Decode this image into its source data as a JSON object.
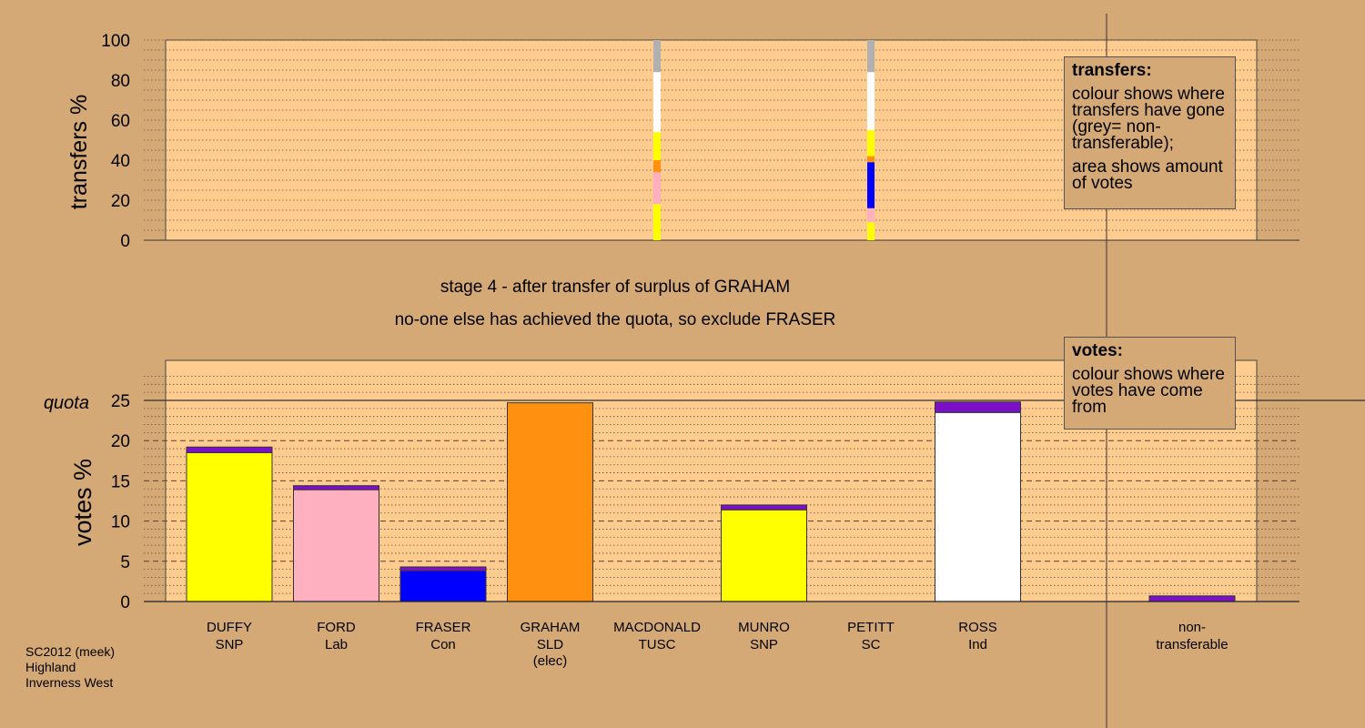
{
  "chart_data": {
    "type": "bar",
    "stage_caption": "stage 4 - after transfer of surplus of GRAHAM",
    "status_caption": "no-one else has achieved the quota, so exclude FRASER",
    "footer": [
      "SC2012 (meek)",
      "Highland",
      "Inverness West"
    ],
    "quota_label": "quota",
    "quota_value": 25,
    "candidates": [
      {
        "name": "DUFFY",
        "party": "SNP",
        "note": "",
        "color": "#ffff00",
        "votes": 18.5,
        "transfer_votes": 0.7
      },
      {
        "name": "FORD",
        "party": "Lab",
        "note": "",
        "color": "#ffb0c0",
        "votes": 13.9,
        "transfer_votes": 0.5
      },
      {
        "name": "FRASER",
        "party": "Con",
        "note": "",
        "color": "#0000ff",
        "votes": 3.8,
        "transfer_votes": 0.5
      },
      {
        "name": "GRAHAM",
        "party": "SLD",
        "note": "(elec)",
        "color": "#ff9010",
        "votes": 24.7,
        "transfer_votes": 0.0
      },
      {
        "name": "MACDONALD",
        "party": "TUSC",
        "note": "",
        "color": "#ff0000",
        "votes": 0,
        "transfer_votes": 0
      },
      {
        "name": "MUNRO",
        "party": "SNP",
        "note": "",
        "color": "#ffff00",
        "votes": 11.4,
        "transfer_votes": 0.6
      },
      {
        "name": "PETITT",
        "party": "SC",
        "note": "",
        "color": "#ff9010",
        "votes": 0,
        "transfer_votes": 0
      },
      {
        "name": "ROSS",
        "party": "Ind",
        "note": "",
        "color": "#ffffff",
        "votes": 23.5,
        "transfer_votes": 1.3
      }
    ],
    "nontransferable": {
      "label_line1": "non-",
      "label_line2": "transferable",
      "votes": 0.7
    },
    "transfer_color": "#7a10c8",
    "transfers": [
      {
        "column": "MACDONALD",
        "segments": [
          {
            "color": "#ffff00",
            "from": 0,
            "to": 18
          },
          {
            "color": "#ffb0c0",
            "from": 18,
            "to": 34
          },
          {
            "color": "#ff9010",
            "from": 34,
            "to": 40
          },
          {
            "color": "#ffff00",
            "from": 40,
            "to": 54
          },
          {
            "color": "#ffffff",
            "from": 54,
            "to": 84
          },
          {
            "color": "#b0b0b0",
            "from": 84,
            "to": 100
          }
        ]
      },
      {
        "column": "PETITT",
        "segments": [
          {
            "color": "#ffff00",
            "from": 0,
            "to": 9
          },
          {
            "color": "#ffb0c0",
            "from": 9,
            "to": 16
          },
          {
            "color": "#0000ff",
            "from": 16,
            "to": 39
          },
          {
            "color": "#ff9010",
            "from": 39,
            "to": 42
          },
          {
            "color": "#ffff00",
            "from": 42,
            "to": 55
          },
          {
            "color": "#ffffff",
            "from": 55,
            "to": 84
          },
          {
            "color": "#b0b0b0",
            "from": 84,
            "to": 100
          }
        ]
      }
    ],
    "top_axis": {
      "ylabel": "transfers %",
      "ticks": [
        0,
        20,
        40,
        60,
        80,
        100
      ],
      "ylim": [
        0,
        100
      ]
    },
    "bottom_axis": {
      "ylabel": "votes %",
      "ticks": [
        0,
        5,
        10,
        15,
        20,
        25
      ],
      "ylim": [
        0,
        25
      ]
    },
    "legend_transfers": {
      "title": "transfers:",
      "line1": "colour shows where transfers have gone (grey= non-transferable);",
      "line2": "area shows amount of votes"
    },
    "legend_votes": {
      "title": "votes:",
      "line1": "colour shows where votes have come from"
    }
  }
}
